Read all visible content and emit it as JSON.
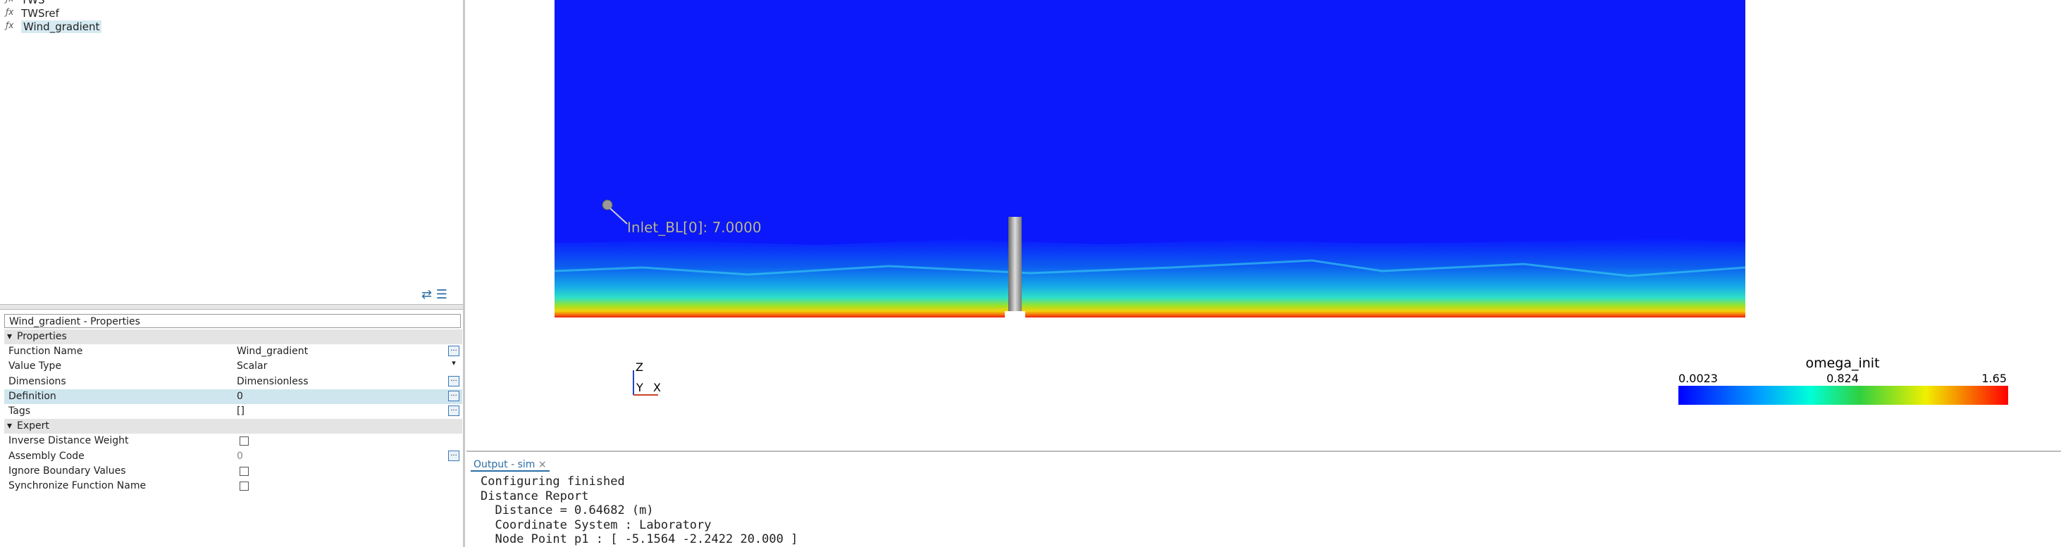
{
  "tree": {
    "items": [
      "TWS",
      "TWSref",
      "Wind_gradient"
    ]
  },
  "properties": {
    "title": "Wind_gradient - Properties",
    "sections": [
      {
        "name": "Properties",
        "rows": [
          [
            "Function Name",
            "Wind_gradient"
          ],
          [
            "Value Type",
            "Scalar"
          ],
          [
            "Dimensions",
            "Dimensionless"
          ],
          [
            "Definition",
            "0"
          ],
          [
            "Tags",
            "[]"
          ]
        ]
      },
      {
        "name": "Expert",
        "rows": [
          [
            "Inverse Distance Weight"
          ],
          [
            "Assembly Code",
            "0"
          ],
          [
            "Ignore Boundary Values"
          ],
          [
            "Synchronize Function Name"
          ]
        ]
      }
    ]
  },
  "viewport": {
    "probe_label": "Inlet_BL[0]: 7.0000",
    "axes": {
      "z": "Z",
      "y": "Y",
      "x": "X"
    },
    "legend": {
      "title": "omega_init",
      "min": "0.0023",
      "mid": "0.824",
      "max": "1.65"
    }
  },
  "output": {
    "tab": "Output - sim",
    "lines": [
      "Configuring finished",
      "Distance Report",
      "  Distance = 0.64682 (m)",
      "  Coordinate System : Laboratory",
      "  Node Point p1 : [ -5.1564 -2.2422 20.000 ]"
    ]
  }
}
